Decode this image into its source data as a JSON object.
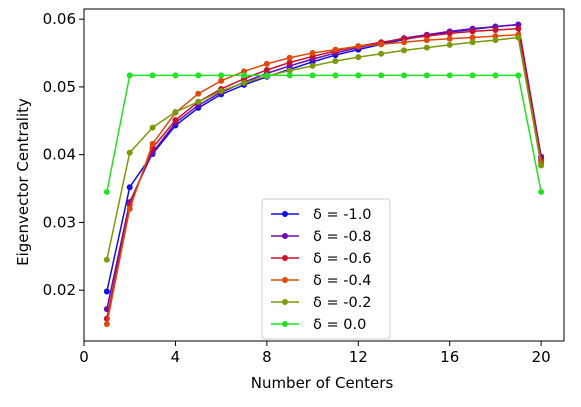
{
  "chart_data": {
    "type": "line",
    "xlabel": "Number of Centers",
    "ylabel": "Eigenvector Centrality",
    "xlim": [
      0,
      21
    ],
    "ylim": [
      0.0125,
      0.0615
    ],
    "xticks": [
      0,
      4,
      8,
      12,
      16,
      20
    ],
    "xtick_labels": [
      "0",
      "4",
      "8",
      "12",
      "16",
      "20"
    ],
    "yticks": [
      0.02,
      0.03,
      0.04,
      0.05,
      0.06
    ],
    "ytick_labels": [
      "0.02",
      "0.03",
      "0.04",
      "0.05",
      "0.06"
    ],
    "grid": false,
    "legend_position": "lower-center",
    "x": [
      1,
      2,
      3,
      4,
      5,
      6,
      7,
      8,
      9,
      10,
      11,
      12,
      13,
      14,
      15,
      16,
      17,
      18,
      19,
      20
    ],
    "series": [
      {
        "name": "δ = -1.0",
        "color": "#1010e0",
        "values": [
          0.0198,
          0.0352,
          0.0401,
          0.0443,
          0.0469,
          0.0489,
          0.0503,
          0.0515,
          0.0526,
          0.0537,
          0.0547,
          0.0555,
          0.0563,
          0.057,
          0.0576,
          0.0581,
          0.0585,
          0.0589,
          0.0592,
          0.0397
        ]
      },
      {
        "name": "δ = -0.8",
        "color": "#6a0ab8",
        "values": [
          0.0172,
          0.033,
          0.0403,
          0.0447,
          0.0473,
          0.0492,
          0.0507,
          0.052,
          0.0531,
          0.0541,
          0.055,
          0.0558,
          0.0565,
          0.0572,
          0.0577,
          0.0582,
          0.0586,
          0.0589,
          0.0592,
          0.0396
        ]
      },
      {
        "name": "δ = -0.6",
        "color": "#c8102e",
        "values": [
          0.0158,
          0.0326,
          0.041,
          0.0451,
          0.0478,
          0.0497,
          0.0512,
          0.0525,
          0.0536,
          0.0545,
          0.0553,
          0.056,
          0.0566,
          0.0571,
          0.0575,
          0.0579,
          0.0582,
          0.0584,
          0.0586,
          0.0392
        ]
      },
      {
        "name": "δ = -0.4",
        "color": "#dd4a0a",
        "values": [
          0.015,
          0.032,
          0.0416,
          0.0462,
          0.049,
          0.0509,
          0.0523,
          0.0534,
          0.0543,
          0.055,
          0.0555,
          0.056,
          0.0563,
          0.0566,
          0.0569,
          0.0571,
          0.0573,
          0.0575,
          0.0577,
          0.0388
        ]
      },
      {
        "name": "δ = -0.2",
        "color": "#7a9a0a",
        "values": [
          0.0245,
          0.0403,
          0.044,
          0.0463,
          0.0478,
          0.0494,
          0.0506,
          0.0516,
          0.0524,
          0.0531,
          0.0538,
          0.0544,
          0.0549,
          0.0554,
          0.0558,
          0.0562,
          0.0566,
          0.0569,
          0.0573,
          0.0384
        ]
      },
      {
        "name": "δ = 0.0",
        "color": "#22e022",
        "values": [
          0.0345,
          0.0517,
          0.0517,
          0.0517,
          0.0517,
          0.0517,
          0.0517,
          0.0517,
          0.0517,
          0.0517,
          0.0517,
          0.0517,
          0.0517,
          0.0517,
          0.0517,
          0.0517,
          0.0517,
          0.0517,
          0.0517,
          0.0345
        ]
      }
    ]
  }
}
